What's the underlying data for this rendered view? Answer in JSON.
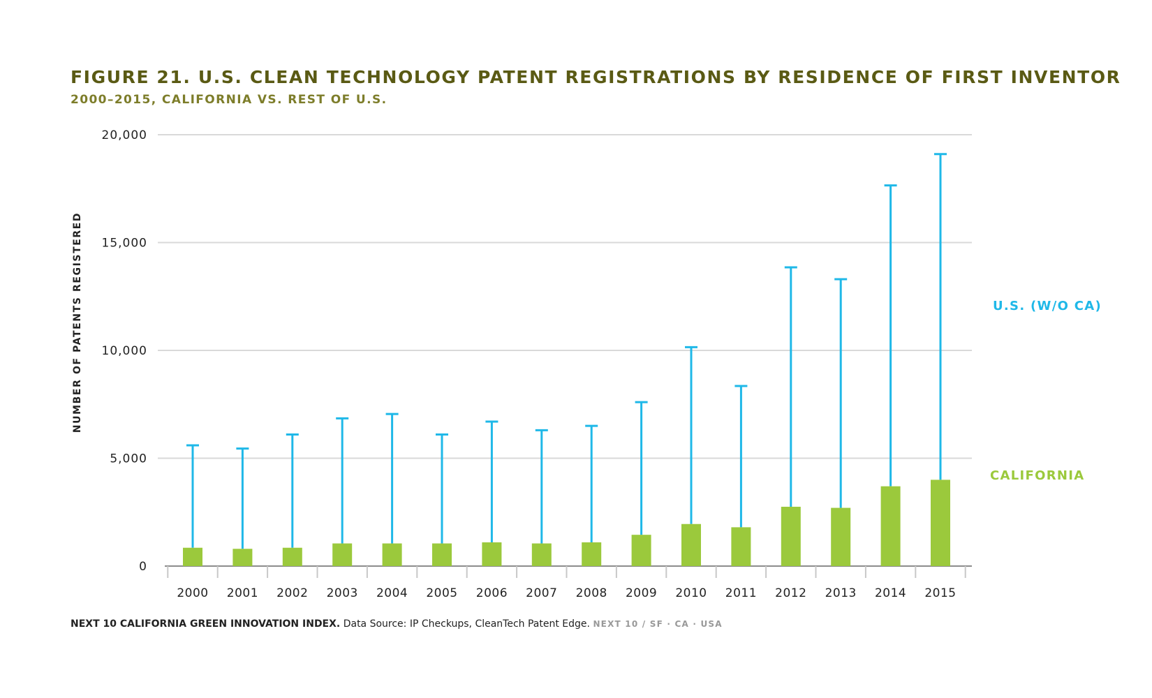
{
  "chart_data": {
    "type": "bar",
    "title": "FIGURE 21. U.S. CLEAN TECHNOLOGY PATENT REGISTRATIONS BY RESIDENCE OF FIRST INVENTOR",
    "subtitle": "2000–2015, CALIFORNIA VS. REST OF U.S.",
    "xlabel": "",
    "ylabel": "NUMBER OF PATENTS REGISTERED",
    "ylim": [
      0,
      20000
    ],
    "yticks": [
      0,
      5000,
      10000,
      15000,
      20000
    ],
    "ytick_labels": [
      "0",
      "5,000",
      "10,000",
      "15,000",
      "20,000"
    ],
    "categories": [
      "2000",
      "2001",
      "2002",
      "2003",
      "2004",
      "2005",
      "2006",
      "2007",
      "2008",
      "2009",
      "2010",
      "2011",
      "2012",
      "2013",
      "2014",
      "2015"
    ],
    "grid": true,
    "series": [
      {
        "name": "CALIFORNIA",
        "style": "bar",
        "color": "#9bc93c",
        "values": [
          850,
          800,
          850,
          1050,
          1050,
          1050,
          1100,
          1050,
          1100,
          1450,
          1950,
          1800,
          2750,
          2700,
          3700,
          4000
        ]
      },
      {
        "name": "U.S. (W/O CA)",
        "style": "stem",
        "color": "#1fb8e8",
        "values": [
          5600,
          5450,
          6100,
          6850,
          7050,
          6100,
          6700,
          6300,
          6500,
          7600,
          10150,
          8350,
          13850,
          13300,
          17650,
          19100
        ]
      }
    ]
  },
  "footer": {
    "brand": "NEXT 10 CALIFORNIA GREEN INNOVATION INDEX.",
    "source": "Data Source: IP Checkups, CleanTech Patent Edge.",
    "mark": "NEXT 10  /  SF · CA · USA"
  }
}
